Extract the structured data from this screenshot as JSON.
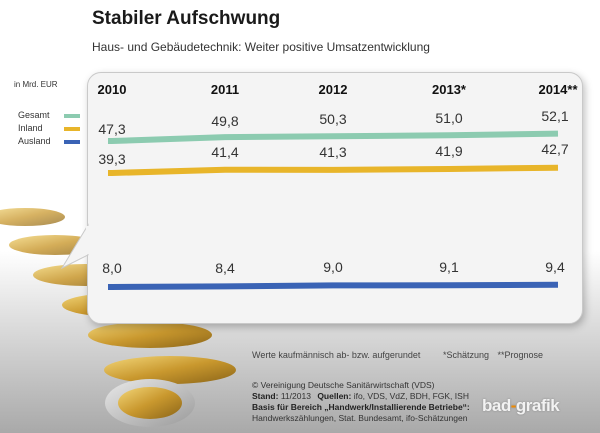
{
  "header": {
    "title": "Stabiler Aufschwung",
    "subtitle": "Haus- und Gebäudetechnik: Weiter positive Umsatzentwicklung"
  },
  "chart_data": {
    "type": "line",
    "title": "Stabiler Aufschwung",
    "subtitle": "Haus- und Gebäudetechnik: Weiter positive Umsatzentwicklung",
    "unit_label": "in Mrd. EUR",
    "categories": [
      "2010",
      "2011",
      "2012",
      "2013*",
      "2014**"
    ],
    "value_labels": {
      "Gesamt": [
        "47,3",
        "49,8",
        "50,3",
        "51,0",
        "52,1"
      ],
      "Inland": [
        "39,3",
        "41,4",
        "41,3",
        "41,9",
        "42,7"
      ],
      "Ausland": [
        "8,0",
        "8,4",
        "9,0",
        "9,1",
        "9,4"
      ]
    },
    "series": [
      {
        "name": "Gesamt",
        "color": "#8ccbb0",
        "values": [
          47.3,
          49.8,
          50.3,
          51.0,
          52.1
        ]
      },
      {
        "name": "Inland",
        "color": "#e8b52a",
        "values": [
          39.3,
          41.4,
          41.3,
          41.9,
          42.7
        ]
      },
      {
        "name": "Ausland",
        "color": "#3a63b5",
        "values": [
          8.0,
          8.4,
          9.0,
          9.1,
          9.4
        ]
      }
    ],
    "legend_position": "left"
  },
  "notes": {
    "rounding": "Werte kaufmännisch ab- bzw. aufgerundet",
    "estimate": "*Schätzung",
    "forecast": "**Prognose"
  },
  "credits": {
    "copyright": "© Vereinigung Deutsche Sanitärwirtschaft (VDS)",
    "stand_label": "Stand:",
    "stand_value": "11/2013",
    "sources_label": "Quellen:",
    "sources_value": "ifo, VDS, VdZ, BDH, FGK, ISH",
    "basis_label": "Basis für Bereich „Handwerk/Installierende Betriebe“:",
    "basis_value": "Handwerkszählungen, Stat. Bundesamt, ifo-Schätzungen"
  },
  "logo": {
    "left": "bad",
    "right": "grafik"
  }
}
